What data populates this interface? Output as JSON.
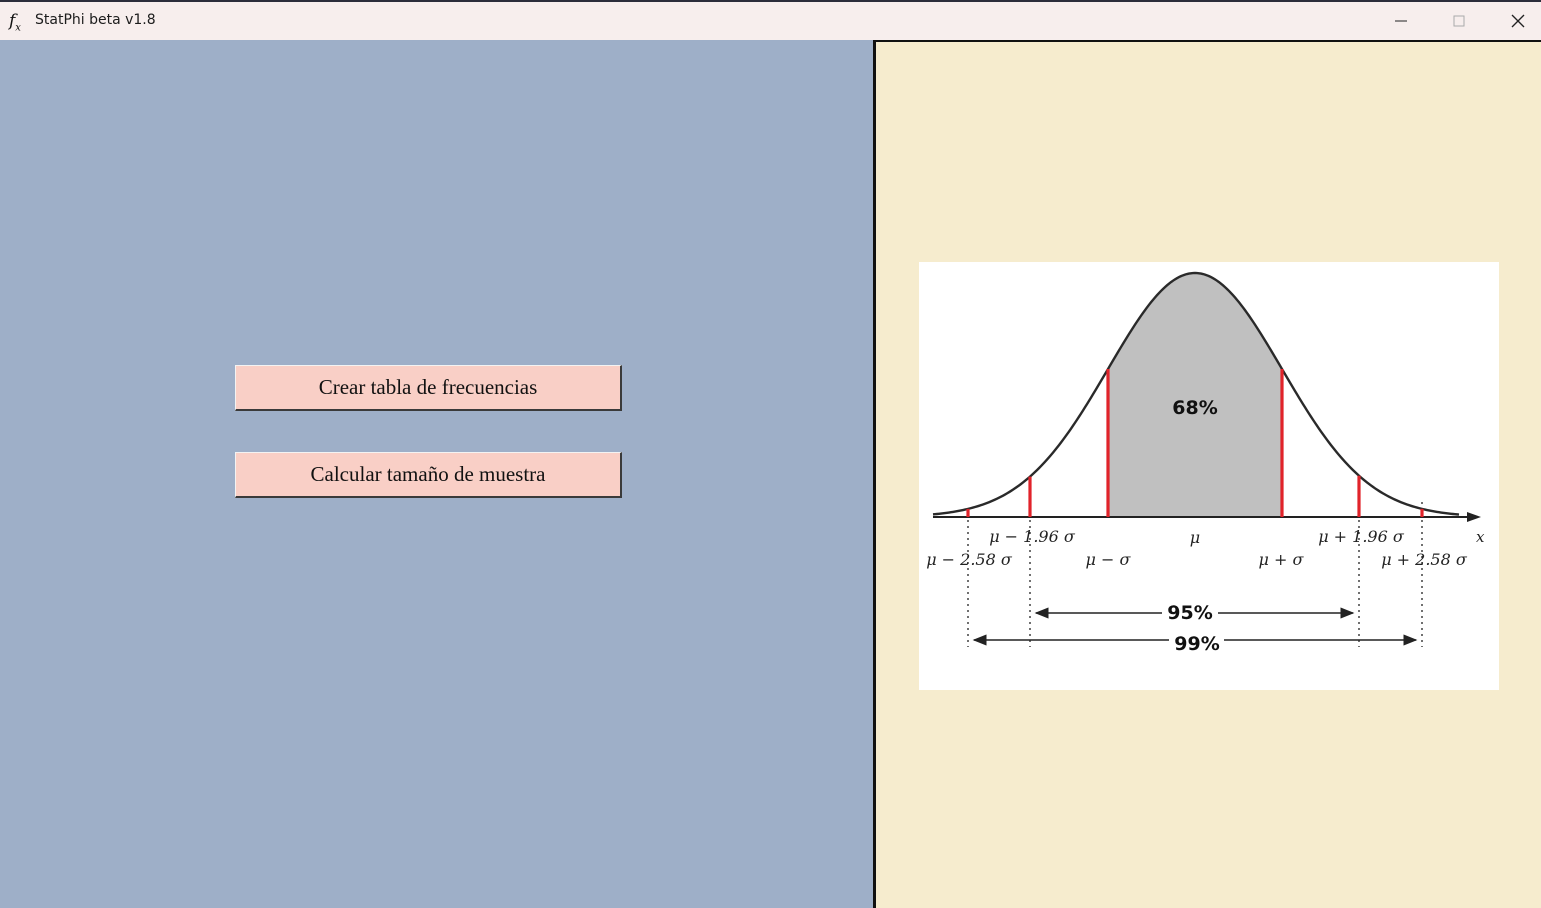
{
  "window": {
    "title": "StatPhi beta v1.8",
    "icon": "fx-icon",
    "controls": [
      "minimize-icon",
      "maximize-icon",
      "close-icon"
    ]
  },
  "left_panel": {
    "buttons": [
      {
        "label": "Crear tabla de frecuencias"
      },
      {
        "label": "Calcular tamaño de muestra"
      }
    ]
  },
  "figure": {
    "center_percent": "68%",
    "range_95_label": "95%",
    "range_99_label": "99%",
    "axis_label": "x",
    "labels": {
      "mu": "μ",
      "mu_minus_sigma": "μ − σ",
      "mu_plus_sigma": "μ + σ",
      "mu_minus_196": "μ − 1.96 σ",
      "mu_plus_196": "μ + 1.96 σ",
      "mu_minus_258": "μ − 2.58 σ",
      "mu_plus_258": "μ + 2.58 σ"
    }
  },
  "colors": {
    "left_bg": "#9eafc8",
    "right_bg": "#f6ecce",
    "button_bg": "#f9cfc6",
    "marker_red": "#e1232a",
    "shaded_area": "#c0c0c0"
  }
}
